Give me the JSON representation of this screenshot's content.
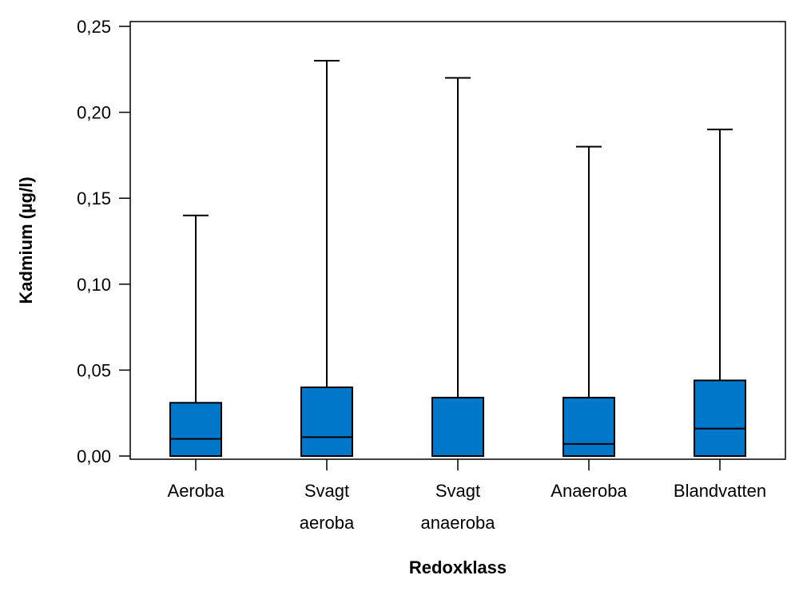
{
  "chart_data": {
    "type": "boxplot",
    "title": "",
    "xlabel": "Redoxklass",
    "ylabel": "Kadmium (µg/l)",
    "ylim": [
      0,
      0.25
    ],
    "yticks": [
      0.0,
      0.05,
      0.1,
      0.15,
      0.2,
      0.25
    ],
    "ytick_labels": [
      "0,00",
      "0,05",
      "0,10",
      "0,15",
      "0,20",
      "0,25"
    ],
    "categories": [
      {
        "label_lines": [
          "Aeroba"
        ],
        "whisker_low": 0.0,
        "q1": 0.0,
        "median": 0.01,
        "q3": 0.031,
        "whisker_high": 0.14
      },
      {
        "label_lines": [
          "Svagt",
          "aeroba"
        ],
        "whisker_low": 0.0,
        "q1": 0.0,
        "median": 0.011,
        "q3": 0.04,
        "whisker_high": 0.23
      },
      {
        "label_lines": [
          "Svagt",
          "anaeroba"
        ],
        "whisker_low": 0.0,
        "q1": 0.0,
        "median": 0.0,
        "q3": 0.034,
        "whisker_high": 0.22
      },
      {
        "label_lines": [
          "Anaeroba"
        ],
        "whisker_low": 0.0,
        "q1": 0.0,
        "median": 0.007,
        "q3": 0.034,
        "whisker_high": 0.18
      },
      {
        "label_lines": [
          "Blandvatten"
        ],
        "whisker_low": 0.0,
        "q1": 0.0,
        "median": 0.016,
        "q3": 0.044,
        "whisker_high": 0.19
      }
    ],
    "box_color": "#0077c8",
    "grid": false
  }
}
